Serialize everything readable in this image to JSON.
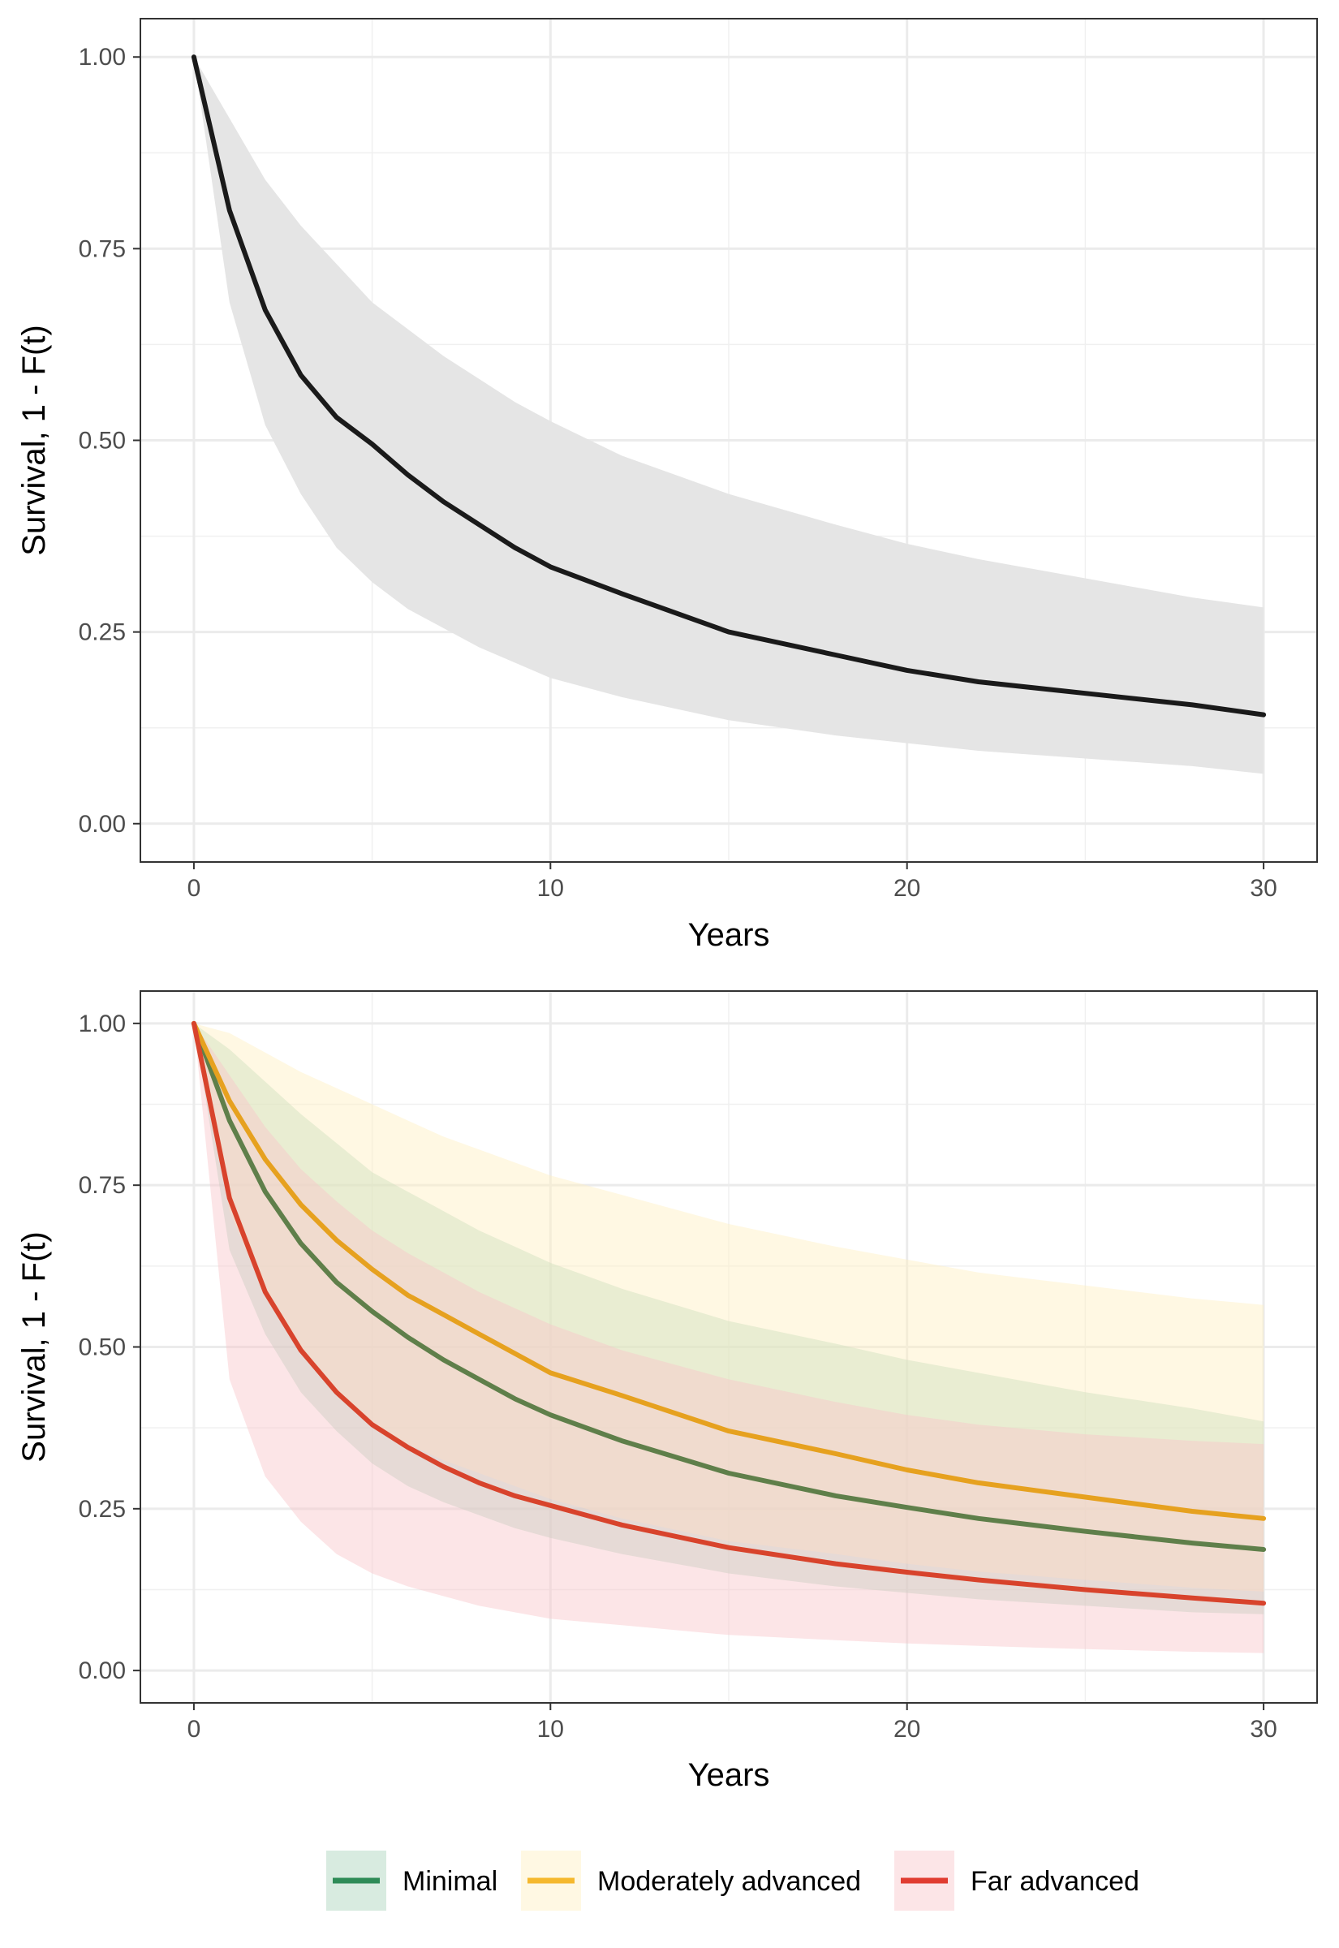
{
  "chart_data": [
    {
      "type": "line",
      "title": "",
      "xlabel": "Years",
      "ylabel": "Survival, 1 - F(t)",
      "xlim": [
        -1.5,
        31.5
      ],
      "ylim": [
        -0.05,
        1.05
      ],
      "x_ticks": [
        "0",
        "10",
        "20",
        "30"
      ],
      "y_ticks": [
        "0.00",
        "0.25",
        "0.50",
        "0.75",
        "1.00"
      ],
      "grid": true,
      "legend": "none",
      "x": [
        0,
        1,
        2,
        3,
        4,
        5,
        6,
        7,
        8,
        9,
        10,
        12,
        15,
        18,
        20,
        22,
        25,
        28,
        30
      ],
      "series": [
        {
          "color": "#1a1a1a",
          "values": [
            1.0,
            0.8,
            0.67,
            0.585,
            0.53,
            0.495,
            0.455,
            0.42,
            0.39,
            0.36,
            0.335,
            0.3,
            0.25,
            0.22,
            0.2,
            0.185,
            0.17,
            0.155,
            0.142
          ],
          "lower": [
            1.0,
            0.68,
            0.52,
            0.43,
            0.36,
            0.315,
            0.28,
            0.255,
            0.23,
            0.21,
            0.19,
            0.165,
            0.135,
            0.115,
            0.105,
            0.095,
            0.085,
            0.075,
            0.065
          ],
          "upper": [
            1.0,
            0.92,
            0.84,
            0.78,
            0.73,
            0.68,
            0.645,
            0.61,
            0.58,
            0.55,
            0.525,
            0.48,
            0.43,
            0.39,
            0.365,
            0.345,
            0.32,
            0.295,
            0.282
          ],
          "band_color": "#e5e5e5"
        }
      ]
    },
    {
      "type": "line",
      "title": "",
      "xlabel": "Years",
      "ylabel": "Survival, 1 - F(t)",
      "xlim": [
        -1.5,
        31.5
      ],
      "ylim": [
        -0.05,
        1.05
      ],
      "x_ticks": [
        "0",
        "10",
        "20",
        "30"
      ],
      "y_ticks": [
        "0.00",
        "0.25",
        "0.50",
        "0.75",
        "1.00"
      ],
      "grid": true,
      "legend": "bottom",
      "x": [
        0,
        1,
        2,
        3,
        4,
        5,
        6,
        7,
        8,
        9,
        10,
        12,
        15,
        18,
        20,
        22,
        25,
        28,
        30
      ],
      "series": [
        {
          "name": "Minimal",
          "color": "#5f7f4a",
          "legend_color": "#2e8b57",
          "band_color": "#a8d3ba",
          "values": [
            1.0,
            0.85,
            0.74,
            0.66,
            0.6,
            0.555,
            0.515,
            0.48,
            0.45,
            0.42,
            0.395,
            0.355,
            0.305,
            0.27,
            0.252,
            0.235,
            0.215,
            0.197,
            0.187
          ],
          "lower": [
            1.0,
            0.65,
            0.52,
            0.43,
            0.37,
            0.32,
            0.285,
            0.26,
            0.24,
            0.22,
            0.205,
            0.18,
            0.15,
            0.13,
            0.12,
            0.11,
            0.1,
            0.09,
            0.087
          ],
          "upper": [
            1.0,
            0.96,
            0.91,
            0.86,
            0.815,
            0.77,
            0.74,
            0.71,
            0.68,
            0.655,
            0.63,
            0.59,
            0.54,
            0.505,
            0.48,
            0.46,
            0.43,
            0.405,
            0.385
          ]
        },
        {
          "name": "Moderately advanced",
          "color": "#e6a11f",
          "legend_color": "#f5b82e",
          "band_color": "#fff0c2",
          "values": [
            1.0,
            0.88,
            0.79,
            0.72,
            0.665,
            0.62,
            0.58,
            0.55,
            0.52,
            0.49,
            0.46,
            0.425,
            0.37,
            0.335,
            0.31,
            0.29,
            0.268,
            0.246,
            0.235
          ],
          "lower": [
            1.0,
            0.71,
            0.58,
            0.49,
            0.43,
            0.38,
            0.35,
            0.325,
            0.305,
            0.285,
            0.265,
            0.235,
            0.2,
            0.18,
            0.165,
            0.153,
            0.14,
            0.128,
            0.122
          ],
          "upper": [
            1.0,
            0.985,
            0.955,
            0.925,
            0.9,
            0.875,
            0.85,
            0.825,
            0.805,
            0.785,
            0.765,
            0.735,
            0.69,
            0.655,
            0.635,
            0.615,
            0.595,
            0.575,
            0.565
          ]
        },
        {
          "name": "Far advanced",
          "color": "#d8432c",
          "legend_color": "#e03c31",
          "band_color": "#f9c6c9",
          "values": [
            1.0,
            0.73,
            0.585,
            0.495,
            0.43,
            0.38,
            0.345,
            0.315,
            0.29,
            0.27,
            0.255,
            0.225,
            0.19,
            0.165,
            0.152,
            0.14,
            0.125,
            0.112,
            0.104
          ],
          "lower": [
            1.0,
            0.45,
            0.3,
            0.23,
            0.18,
            0.15,
            0.13,
            0.115,
            0.1,
            0.09,
            0.08,
            0.07,
            0.055,
            0.047,
            0.042,
            0.038,
            0.033,
            0.029,
            0.027
          ],
          "upper": [
            1.0,
            0.92,
            0.84,
            0.775,
            0.725,
            0.68,
            0.645,
            0.615,
            0.585,
            0.56,
            0.535,
            0.495,
            0.45,
            0.415,
            0.395,
            0.38,
            0.365,
            0.355,
            0.35
          ]
        }
      ]
    }
  ]
}
